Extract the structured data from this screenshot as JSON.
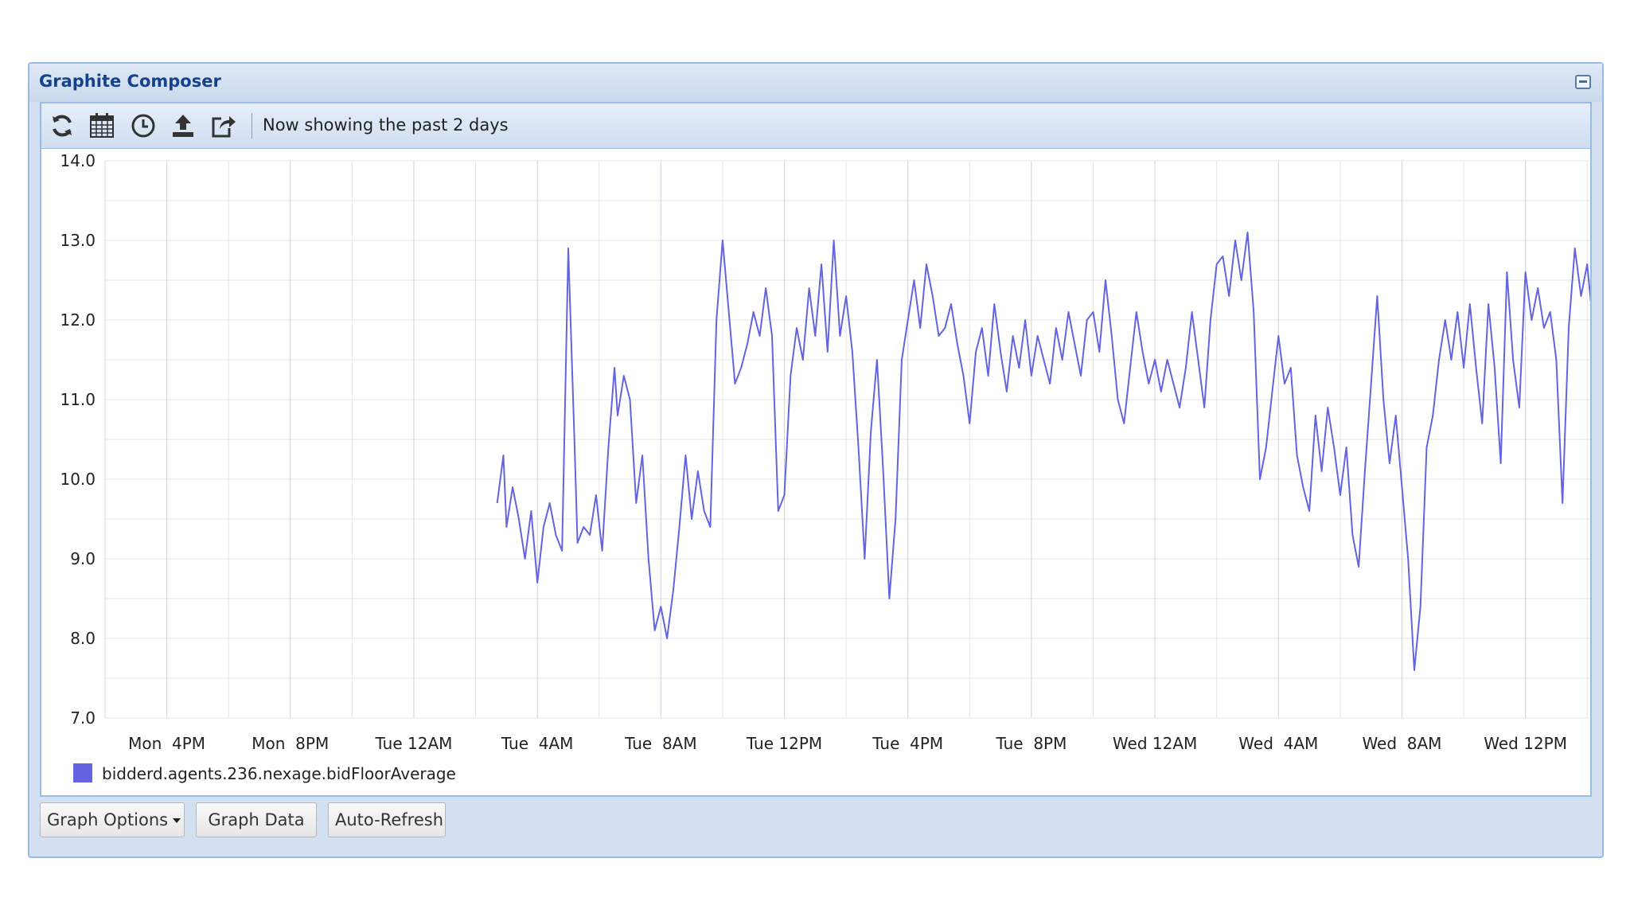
{
  "window": {
    "title": "Graphite Composer"
  },
  "toolbar": {
    "icons": [
      "refresh-icon",
      "calendar-icon",
      "clock-icon",
      "upload-icon",
      "share-icon"
    ],
    "status_text": "Now showing the past 2 days"
  },
  "buttons": {
    "graph_options": "Graph Options",
    "graph_data": "Graph Data",
    "auto_refresh": "Auto-Refresh"
  },
  "chart_data": {
    "type": "line",
    "ylim": [
      7.0,
      14.0
    ],
    "yticks": [
      "14.0",
      "13.0",
      "12.0",
      "11.0",
      "10.0",
      "9.0",
      "8.0",
      "7.0"
    ],
    "xticks": [
      "Mon  4PM",
      "Mon  8PM",
      "Tue 12AM",
      "Tue  4AM",
      "Tue  8AM",
      "Tue 12PM",
      "Tue  4PM",
      "Tue  8PM",
      "Wed 12AM",
      "Wed  4AM",
      "Wed  8AM",
      "Wed 12PM"
    ],
    "x_start_hour": 14.0,
    "x_end_hour": 62.2,
    "grid": true,
    "legend_position": "bottom-left",
    "colors": {
      "series": "#6464e0"
    },
    "series": [
      {
        "name": "bidderd.agents.236.nexage.bidFloorAverage",
        "points": [
          [
            26.7,
            9.7
          ],
          [
            26.9,
            10.3
          ],
          [
            27.0,
            9.4
          ],
          [
            27.2,
            9.9
          ],
          [
            27.4,
            9.5
          ],
          [
            27.6,
            9.0
          ],
          [
            27.8,
            9.6
          ],
          [
            28.0,
            8.7
          ],
          [
            28.2,
            9.4
          ],
          [
            28.4,
            9.7
          ],
          [
            28.6,
            9.3
          ],
          [
            28.8,
            9.1
          ],
          [
            29.0,
            12.9
          ],
          [
            29.2,
            10.5
          ],
          [
            29.3,
            9.2
          ],
          [
            29.5,
            9.4
          ],
          [
            29.7,
            9.3
          ],
          [
            29.9,
            9.8
          ],
          [
            30.1,
            9.1
          ],
          [
            30.3,
            10.4
          ],
          [
            30.5,
            11.4
          ],
          [
            30.6,
            10.8
          ],
          [
            30.8,
            11.3
          ],
          [
            31.0,
            11.0
          ],
          [
            31.2,
            9.7
          ],
          [
            31.4,
            10.3
          ],
          [
            31.6,
            9.0
          ],
          [
            31.8,
            8.1
          ],
          [
            32.0,
            8.4
          ],
          [
            32.2,
            8.0
          ],
          [
            32.4,
            8.6
          ],
          [
            32.6,
            9.4
          ],
          [
            32.8,
            10.3
          ],
          [
            33.0,
            9.5
          ],
          [
            33.2,
            10.1
          ],
          [
            33.4,
            9.6
          ],
          [
            33.6,
            9.4
          ],
          [
            33.8,
            12.0
          ],
          [
            34.0,
            13.0
          ],
          [
            34.2,
            12.1
          ],
          [
            34.4,
            11.2
          ],
          [
            34.6,
            11.4
          ],
          [
            34.8,
            11.7
          ],
          [
            35.0,
            12.1
          ],
          [
            35.2,
            11.8
          ],
          [
            35.4,
            12.4
          ],
          [
            35.6,
            11.8
          ],
          [
            35.8,
            9.6
          ],
          [
            36.0,
            9.8
          ],
          [
            36.2,
            11.3
          ],
          [
            36.4,
            11.9
          ],
          [
            36.6,
            11.5
          ],
          [
            36.8,
            12.4
          ],
          [
            37.0,
            11.8
          ],
          [
            37.2,
            12.7
          ],
          [
            37.4,
            11.6
          ],
          [
            37.6,
            13.0
          ],
          [
            37.8,
            11.8
          ],
          [
            38.0,
            12.3
          ],
          [
            38.2,
            11.6
          ],
          [
            38.4,
            10.4
          ],
          [
            38.6,
            9.0
          ],
          [
            38.8,
            10.6
          ],
          [
            39.0,
            11.5
          ],
          [
            39.2,
            10.1
          ],
          [
            39.4,
            8.5
          ],
          [
            39.6,
            9.5
          ],
          [
            39.8,
            11.5
          ],
          [
            40.0,
            12.0
          ],
          [
            40.2,
            12.5
          ],
          [
            40.4,
            11.9
          ],
          [
            40.6,
            12.7
          ],
          [
            40.8,
            12.3
          ],
          [
            41.0,
            11.8
          ],
          [
            41.2,
            11.9
          ],
          [
            41.4,
            12.2
          ],
          [
            41.6,
            11.7
          ],
          [
            41.8,
            11.3
          ],
          [
            42.0,
            10.7
          ],
          [
            42.2,
            11.6
          ],
          [
            42.4,
            11.9
          ],
          [
            42.6,
            11.3
          ],
          [
            42.8,
            12.2
          ],
          [
            43.0,
            11.6
          ],
          [
            43.2,
            11.1
          ],
          [
            43.4,
            11.8
          ],
          [
            43.6,
            11.4
          ],
          [
            43.8,
            12.0
          ],
          [
            44.0,
            11.3
          ],
          [
            44.2,
            11.8
          ],
          [
            44.4,
            11.5
          ],
          [
            44.6,
            11.2
          ],
          [
            44.8,
            11.9
          ],
          [
            45.0,
            11.5
          ],
          [
            45.2,
            12.1
          ],
          [
            45.4,
            11.7
          ],
          [
            45.6,
            11.3
          ],
          [
            45.8,
            12.0
          ],
          [
            46.0,
            12.1
          ],
          [
            46.2,
            11.6
          ],
          [
            46.4,
            12.5
          ],
          [
            46.6,
            11.8
          ],
          [
            46.8,
            11.0
          ],
          [
            47.0,
            10.7
          ],
          [
            47.2,
            11.4
          ],
          [
            47.4,
            12.1
          ],
          [
            47.6,
            11.6
          ],
          [
            47.8,
            11.2
          ],
          [
            48.0,
            11.5
          ],
          [
            48.2,
            11.1
          ],
          [
            48.4,
            11.5
          ],
          [
            48.6,
            11.2
          ],
          [
            48.8,
            10.9
          ],
          [
            49.0,
            11.4
          ],
          [
            49.2,
            12.1
          ],
          [
            49.4,
            11.5
          ],
          [
            49.6,
            10.9
          ],
          [
            49.8,
            12.0
          ],
          [
            50.0,
            12.7
          ],
          [
            50.2,
            12.8
          ],
          [
            50.4,
            12.3
          ],
          [
            50.6,
            13.0
          ],
          [
            50.8,
            12.5
          ],
          [
            51.0,
            13.1
          ],
          [
            51.2,
            12.1
          ],
          [
            51.4,
            10.0
          ],
          [
            51.6,
            10.4
          ],
          [
            51.8,
            11.1
          ],
          [
            52.0,
            11.8
          ],
          [
            52.2,
            11.2
          ],
          [
            52.4,
            11.4
          ],
          [
            52.6,
            10.3
          ],
          [
            52.8,
            9.9
          ],
          [
            53.0,
            9.6
          ],
          [
            53.2,
            10.8
          ],
          [
            53.4,
            10.1
          ],
          [
            53.6,
            10.9
          ],
          [
            53.8,
            10.4
          ],
          [
            54.0,
            9.8
          ],
          [
            54.2,
            10.4
          ],
          [
            54.4,
            9.3
          ],
          [
            54.6,
            8.9
          ],
          [
            54.8,
            10.1
          ],
          [
            55.0,
            11.2
          ],
          [
            55.2,
            12.3
          ],
          [
            55.4,
            11.0
          ],
          [
            55.6,
            10.2
          ],
          [
            55.8,
            10.8
          ],
          [
            56.0,
            9.9
          ],
          [
            56.2,
            9.0
          ],
          [
            56.4,
            7.6
          ],
          [
            56.6,
            8.4
          ],
          [
            56.8,
            10.4
          ],
          [
            57.0,
            10.8
          ],
          [
            57.2,
            11.5
          ],
          [
            57.4,
            12.0
          ],
          [
            57.6,
            11.5
          ],
          [
            57.8,
            12.1
          ],
          [
            58.0,
            11.4
          ],
          [
            58.2,
            12.2
          ],
          [
            58.4,
            11.4
          ],
          [
            58.6,
            10.7
          ],
          [
            58.8,
            12.2
          ],
          [
            59.0,
            11.4
          ],
          [
            59.2,
            10.2
          ],
          [
            59.4,
            12.6
          ],
          [
            59.6,
            11.5
          ],
          [
            59.8,
            10.9
          ],
          [
            60.0,
            12.6
          ],
          [
            60.2,
            12.0
          ],
          [
            60.4,
            12.4
          ],
          [
            60.6,
            11.9
          ],
          [
            60.8,
            12.1
          ],
          [
            61.0,
            11.5
          ],
          [
            61.2,
            9.7
          ],
          [
            61.4,
            11.9
          ],
          [
            61.6,
            12.9
          ],
          [
            61.8,
            12.3
          ],
          [
            62.0,
            12.7
          ],
          [
            62.2,
            11.9
          ]
        ]
      }
    ]
  }
}
